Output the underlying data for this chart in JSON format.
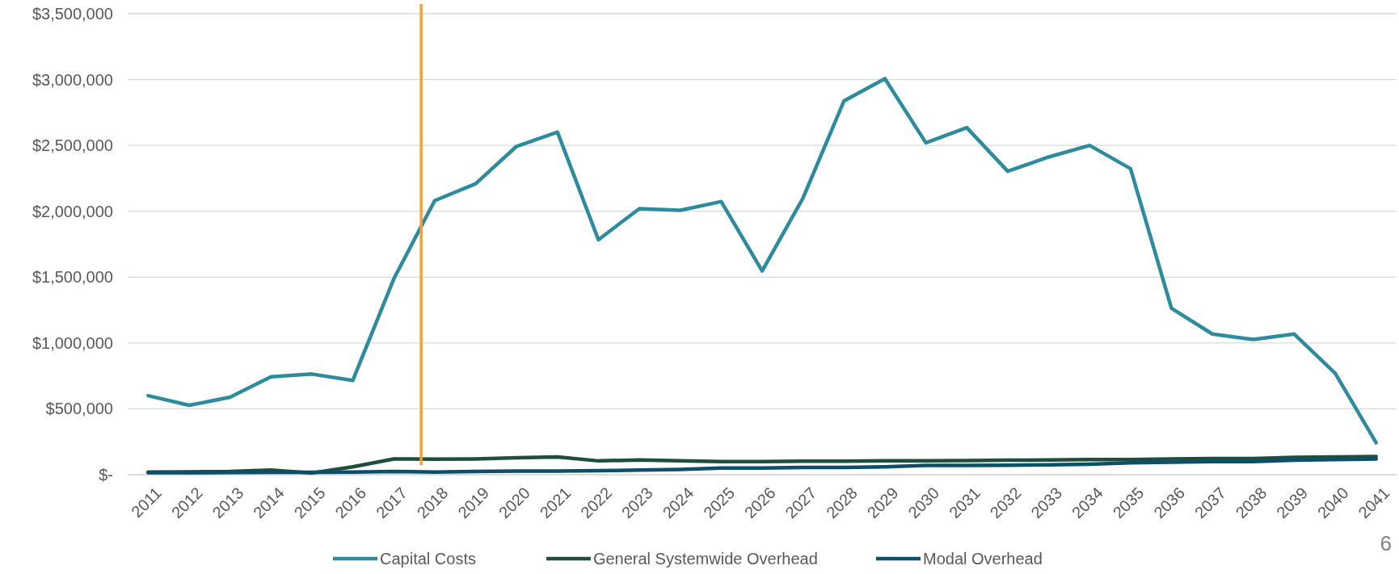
{
  "chart_data": {
    "type": "line",
    "x": [
      2011,
      2012,
      2013,
      2014,
      2015,
      2016,
      2017,
      2018,
      2019,
      2020,
      2021,
      2022,
      2023,
      2024,
      2025,
      2026,
      2027,
      2028,
      2029,
      2030,
      2031,
      2032,
      2033,
      2034,
      2035,
      2036,
      2037,
      2038,
      2039,
      2040,
      2041
    ],
    "xlim": [
      2010.5,
      2041.5
    ],
    "xticks": [
      2011,
      2012,
      2013,
      2014,
      2015,
      2016,
      2017,
      2018,
      2019,
      2020,
      2021,
      2022,
      2023,
      2024,
      2025,
      2026,
      2027,
      2028,
      2029,
      2030,
      2031,
      2032,
      2033,
      2034,
      2035,
      2036,
      2037,
      2038,
      2039,
      2040,
      2041
    ],
    "ylim": [
      0,
      3500000
    ],
    "yticks": [
      {
        "value": 0,
        "label": "$-"
      },
      {
        "value": 500000,
        "label": "$500,000"
      },
      {
        "value": 1000000,
        "label": "$1,000,000"
      },
      {
        "value": 1500000,
        "label": "$1,500,000"
      },
      {
        "value": 2000000,
        "label": "$2,000,000"
      },
      {
        "value": 2500000,
        "label": "$2,500,000"
      },
      {
        "value": 3000000,
        "label": "$3,000,000"
      },
      {
        "value": 3500000,
        "label": "$3,500,000"
      }
    ],
    "series": [
      {
        "name": "Capital Costs",
        "color": "#2e8b9e",
        "values": [
          600000,
          527000,
          588000,
          743000,
          764000,
          716000,
          1486000,
          2081000,
          2209000,
          2493000,
          2601000,
          1784000,
          2020000,
          2007000,
          2074000,
          1547000,
          2101000,
          2838000,
          3007000,
          2520000,
          2635000,
          2304000,
          2412000,
          2500000,
          2324000,
          1264000,
          1068000,
          1027000,
          1068000,
          770000,
          243000
        ]
      },
      {
        "name": "General Systemwide Overhead",
        "color": "#1f4e3d",
        "values": [
          20000,
          22000,
          25000,
          35000,
          13000,
          60000,
          120000,
          118000,
          120000,
          128000,
          135000,
          105000,
          112000,
          105000,
          100000,
          100000,
          102000,
          103000,
          105000,
          105000,
          108000,
          110000,
          112000,
          115000,
          115000,
          120000,
          122000,
          122000,
          132000,
          135000,
          138000
        ]
      },
      {
        "name": "Modal Overhead",
        "color": "#0d4f6b",
        "values": [
          15000,
          15000,
          17000,
          18000,
          18000,
          20000,
          25000,
          20000,
          25000,
          27000,
          28000,
          30000,
          35000,
          40000,
          50000,
          50000,
          55000,
          55000,
          60000,
          70000,
          70000,
          72000,
          75000,
          80000,
          90000,
          95000,
          100000,
          100000,
          110000,
          115000,
          120000
        ]
      }
    ],
    "ref_lines": [
      {
        "axis": "x",
        "value": 2017.67,
        "color": "#f5a030"
      }
    ],
    "grid": "y",
    "legend": "bottom",
    "line_style": "solid",
    "annotations": [
      "6"
    ]
  }
}
